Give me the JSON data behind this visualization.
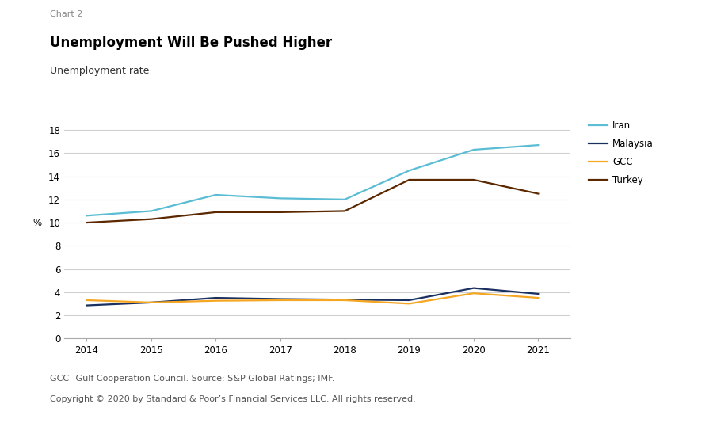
{
  "title_small": "Chart 2",
  "title_main": "Unemployment Will Be Pushed Higher",
  "title_sub": "Unemployment rate",
  "ylabel": "%",
  "years": [
    2014,
    2015,
    2016,
    2017,
    2018,
    2019,
    2020,
    2021
  ],
  "iran": [
    10.6,
    11.0,
    12.4,
    12.1,
    12.0,
    14.5,
    16.3,
    16.7
  ],
  "malaysia": [
    2.85,
    3.1,
    3.5,
    3.4,
    3.35,
    3.3,
    4.35,
    3.85
  ],
  "gcc": [
    3.3,
    3.1,
    3.25,
    3.3,
    3.3,
    3.0,
    3.9,
    3.5
  ],
  "turkey": [
    10.0,
    10.3,
    10.9,
    10.9,
    11.0,
    13.7,
    13.7,
    12.5
  ],
  "iran_color": "#5bbdd4",
  "malaysia_color": "#1a3060",
  "gcc_color": "#f5a623",
  "turkey_color": "#5c2800",
  "ylim": [
    0,
    19
  ],
  "yticks": [
    0,
    2,
    4,
    6,
    8,
    10,
    12,
    14,
    16,
    18
  ],
  "bg_color": "#ffffff",
  "grid_color": "#d0d0d0",
  "footer1": "GCC--Gulf Cooperation Council. Source: S&P Global Ratings; IMF.",
  "footer2": "Copyright © 2020 by Standard & Poor’s Financial Services LLC. All rights reserved."
}
